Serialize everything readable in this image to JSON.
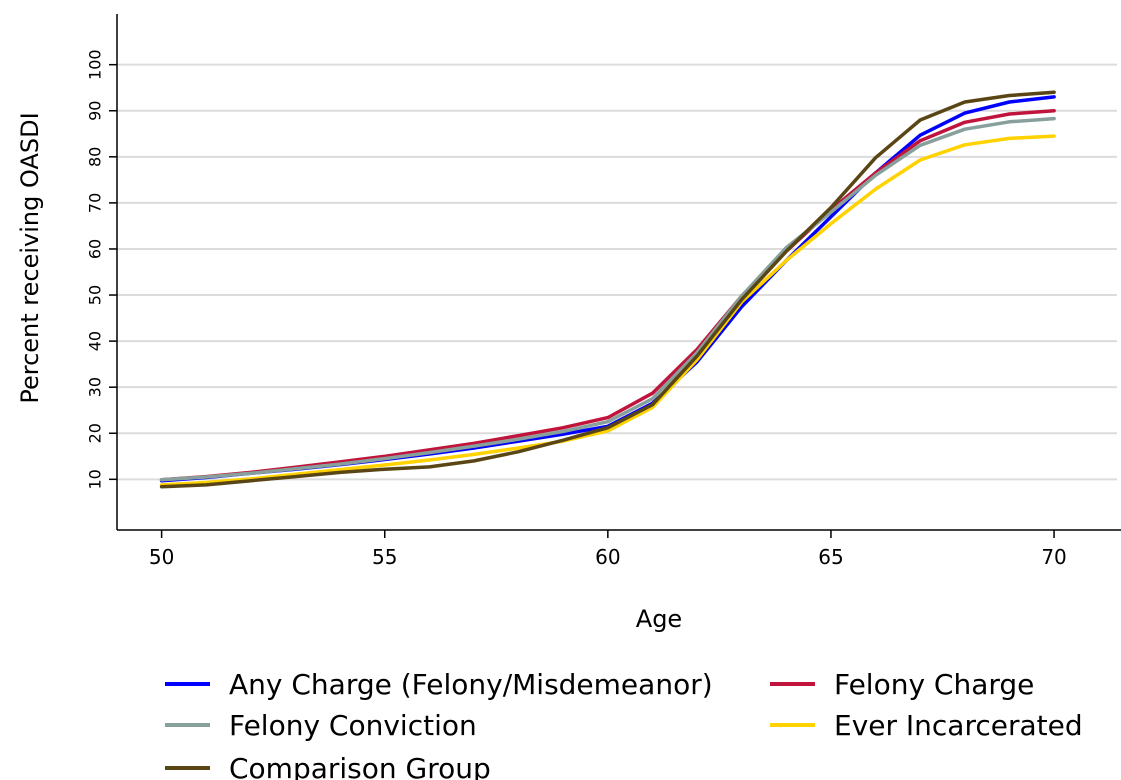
{
  "chart_data": {
    "type": "line",
    "title": "",
    "xlabel": "Age",
    "ylabel": "Percent receiving OASDI",
    "xlim": [
      49,
      71.5
    ],
    "ylim": [
      -1,
      111
    ],
    "x_ticks": [
      50,
      55,
      60,
      65,
      70
    ],
    "y_ticks": [
      10,
      20,
      30,
      40,
      50,
      60,
      70,
      80,
      90,
      100
    ],
    "grid": "horizontal",
    "legend_position": "bottom",
    "x": [
      50,
      51,
      52,
      53,
      54,
      55,
      56,
      57,
      58,
      59,
      60,
      61,
      62,
      63,
      64,
      65,
      66,
      67,
      68,
      69,
      70
    ],
    "series": [
      {
        "name": "Any Charge (Felony/Misdemeanor)",
        "color": "#0000ff",
        "values": [
          9.7,
          10.4,
          11.3,
          12.2,
          13.2,
          14.3,
          15.5,
          16.8,
          18.3,
          19.8,
          21.5,
          26.5,
          35.5,
          47.5,
          57.5,
          67.0,
          76.5,
          84.7,
          89.5,
          91.9,
          93.0
        ]
      },
      {
        "name": "Felony Charge",
        "color": "#c0143c",
        "values": [
          9.9,
          10.6,
          11.5,
          12.6,
          13.8,
          15.0,
          16.4,
          17.8,
          19.5,
          21.2,
          23.4,
          28.7,
          38.2,
          49.8,
          59.5,
          68.5,
          76.5,
          83.5,
          87.5,
          89.3,
          90.0
        ]
      },
      {
        "name": "Felony Conviction",
        "color": "#87a09b",
        "values": [
          9.9,
          10.5,
          11.3,
          12.3,
          13.3,
          14.5,
          15.8,
          17.2,
          18.7,
          20.4,
          22.5,
          27.5,
          37.5,
          49.8,
          60.3,
          68.0,
          76.0,
          82.5,
          86.0,
          87.6,
          88.3
        ]
      },
      {
        "name": "Ever Incarcerated",
        "color": "#ffd200",
        "values": [
          8.8,
          9.3,
          10.1,
          11.1,
          12.1,
          13.1,
          14.2,
          15.4,
          16.8,
          18.3,
          20.5,
          25.6,
          36.0,
          48.5,
          57.5,
          65.5,
          73.0,
          79.3,
          82.6,
          84.0,
          84.5
        ]
      },
      {
        "name": "Comparison Group",
        "color": "#5a4614",
        "values": [
          8.4,
          8.8,
          9.7,
          10.6,
          11.5,
          12.2,
          12.7,
          14.0,
          16.0,
          18.5,
          21.2,
          26.2,
          36.8,
          49.0,
          59.5,
          69.0,
          79.8,
          88.0,
          91.9,
          93.3,
          94.0
        ]
      }
    ]
  }
}
